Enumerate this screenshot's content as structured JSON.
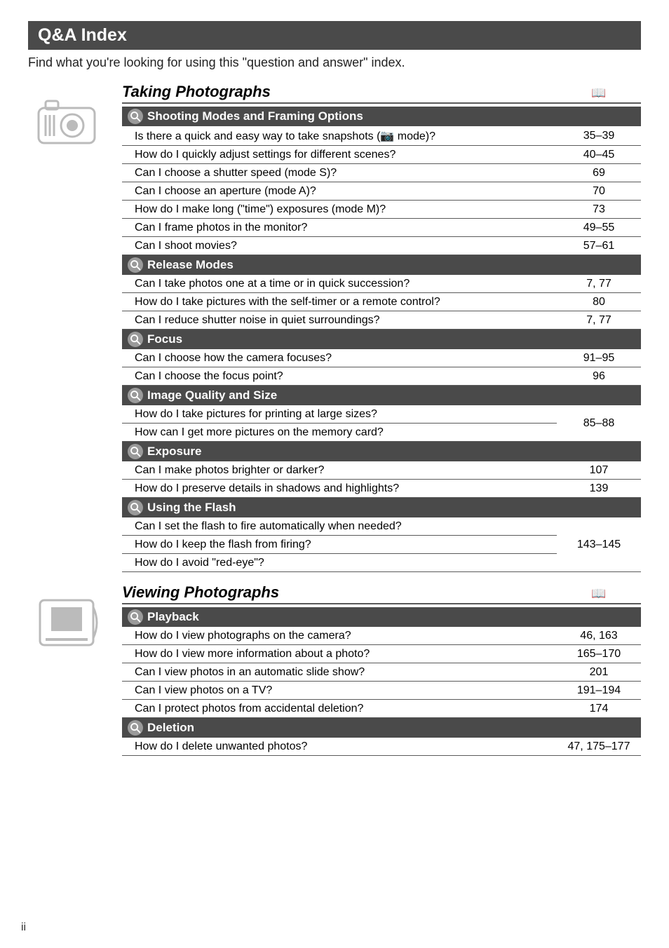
{
  "banner": "Q&A Index",
  "intro": "Find what you're looking for using this \"question and answer\" index.",
  "page_symbol": "📖",
  "page_number": "ii",
  "sections": [
    {
      "title": "Taking Photographs",
      "icon": "camera",
      "groups": [
        {
          "heading": "Shooting Modes and Framing Options",
          "rows": [
            {
              "q": "Is there a quick and easy way to take snapshots (📷 mode)?",
              "p": "35–39"
            },
            {
              "q": "How do I quickly adjust settings for different scenes?",
              "p": "40–45"
            },
            {
              "q": "Can I choose a shutter speed (mode S)?",
              "p": "69"
            },
            {
              "q": "Can I choose an aperture (mode A)?",
              "p": "70"
            },
            {
              "q": "How do I make long (\"time\") exposures (mode M)?",
              "p": "73"
            },
            {
              "q": "Can I frame photos in the monitor?",
              "p": "49–55"
            },
            {
              "q": "Can I shoot movies?",
              "p": "57–61"
            }
          ]
        },
        {
          "heading": "Release Modes",
          "rows": [
            {
              "q": "Can I take photos one at a time or in quick succession?",
              "p": "7, 77"
            },
            {
              "q": "How do I take pictures with the self-timer or a remote control?",
              "p": "80"
            },
            {
              "q": "Can I reduce shutter noise in quiet surroundings?",
              "p": "7, 77"
            }
          ]
        },
        {
          "heading": "Focus",
          "rows": [
            {
              "q": "Can I choose how the camera focuses?",
              "p": "91–95"
            },
            {
              "q": "Can I choose the focus point?",
              "p": "96"
            }
          ]
        },
        {
          "heading": "Image Quality and Size",
          "span_rows": {
            "questions": [
              "How do I take pictures for printing at large sizes?",
              "How can I get more pictures on the memory card?"
            ],
            "p": "85–88"
          }
        },
        {
          "heading": "Exposure",
          "rows": [
            {
              "q": "Can I make photos brighter or darker?",
              "p": "107"
            },
            {
              "q": "How do I preserve details in shadows and highlights?",
              "p": "139"
            }
          ]
        },
        {
          "heading": "Using the Flash",
          "span_rows": {
            "questions": [
              "Can I set the flash to fire automatically when needed?",
              "How do I keep the flash from firing?",
              "How do I avoid \"red-eye\"?"
            ],
            "p": "143–145"
          }
        }
      ]
    },
    {
      "title": "Viewing Photographs",
      "icon": "photo",
      "groups": [
        {
          "heading": "Playback",
          "rows": [
            {
              "q": "How do I view photographs on the camera?",
              "p": "46, 163"
            },
            {
              "q": "How do I view more information about a photo?",
              "p": "165–170"
            },
            {
              "q": "Can I view photos in an automatic slide show?",
              "p": "201"
            },
            {
              "q": "Can I view photos on a TV?",
              "p": "191–194"
            },
            {
              "q": "Can I protect photos from accidental deletion?",
              "p": "174"
            }
          ]
        },
        {
          "heading": "Deletion",
          "rows": [
            {
              "q": "How do I delete unwanted photos?",
              "p": "47, 175–177"
            }
          ]
        }
      ]
    }
  ]
}
